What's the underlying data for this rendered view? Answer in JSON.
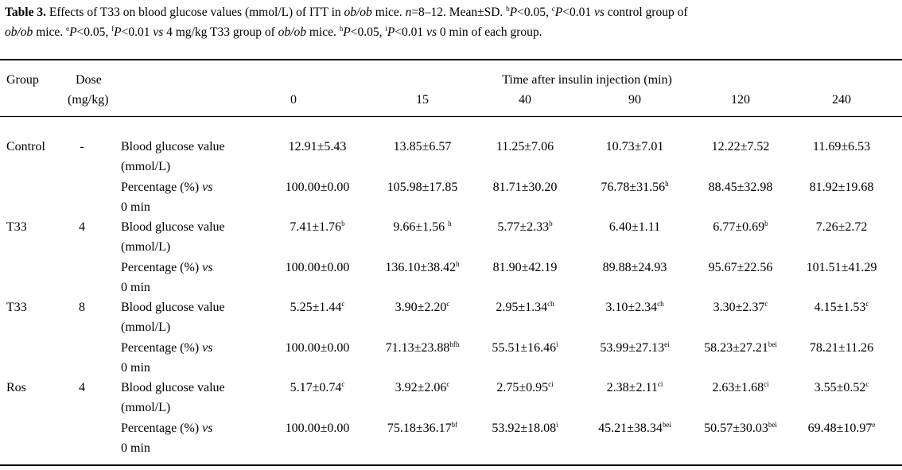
{
  "caption": {
    "label": "Table 3.",
    "text_1": " Effects of T33 on blood glucose values (mmol/L) of ITT in ",
    "mouse": "ob/ob",
    "text_2": " mice. ",
    "n_var": "n",
    "text_3": "=8–12. Mean±SD. ",
    "sup_b": "b",
    "p1": "P",
    "text_4": "<0.05, ",
    "sup_c": "c",
    "p2": "P",
    "text_5": "<0.01 ",
    "vs1": "vs",
    "text_6": " control group of",
    "mouse2": "ob/ob",
    "text_7": " mice. ",
    "sup_e": "e",
    "p3": "P",
    "text_8": "<0.05, ",
    "sup_f": "f",
    "p4": "P",
    "text_9": "<0.01 ",
    "vs2": "vs",
    "text_10": " 4 mg/kg T33 group of ",
    "mouse3": "ob/ob",
    "text_11": " mice. ",
    "sup_h": "h",
    "p5": "P",
    "text_12": "<0.05, ",
    "sup_i": "i",
    "p6": "P",
    "text_13": "<0.01 ",
    "vs3": "vs",
    "text_14": " 0 min of each group."
  },
  "header": {
    "group": "Group",
    "dose_1": "Dose",
    "dose_2": "(mg/kg)",
    "time_span": "Time after insulin injection (min)",
    "times": [
      "0",
      "15",
      "40",
      "90",
      "120",
      "240"
    ]
  },
  "metric_labels": {
    "bg_1": "Blood glucose value",
    "bg_2": "(mmol/L)",
    "pct_1": "Percentage (%) ",
    "pct_vs": "vs",
    "pct_2": "0 min"
  },
  "groups": [
    {
      "name": "Control",
      "dose": "-",
      "bg": [
        [
          "12.91±5.43",
          ""
        ],
        [
          "13.85±6.57",
          ""
        ],
        [
          "11.25±7.06",
          ""
        ],
        [
          "10.73±7.01",
          ""
        ],
        [
          "12.22±7.52",
          ""
        ],
        [
          "11.69±6.53",
          ""
        ]
      ],
      "pct": [
        [
          "100.00±0.00",
          ""
        ],
        [
          "105.98±17.85",
          ""
        ],
        [
          "81.71±30.20",
          ""
        ],
        [
          "76.78±31.56",
          "h"
        ],
        [
          "88.45±32.98",
          ""
        ],
        [
          "81.92±19.68",
          ""
        ]
      ]
    },
    {
      "name": "T33",
      "dose": "4",
      "bg": [
        [
          "7.41±1.76",
          "b"
        ],
        [
          "9.66±1.56 ",
          "h"
        ],
        [
          "5.77±2.33",
          "b"
        ],
        [
          "6.40±1.11",
          ""
        ],
        [
          "6.77±0.69",
          "b"
        ],
        [
          "7.26±2.72",
          ""
        ]
      ],
      "pct": [
        [
          "100.00±0.00",
          ""
        ],
        [
          "136.10±38.42",
          "h"
        ],
        [
          "81.90±42.19",
          ""
        ],
        [
          "89.88±24.93",
          ""
        ],
        [
          "95.67±22.56",
          ""
        ],
        [
          "101.51±41.29",
          ""
        ]
      ]
    },
    {
      "name": "T33",
      "dose": "8",
      "bg": [
        [
          "5.25±1.44",
          "c"
        ],
        [
          "3.90±2.20",
          "c"
        ],
        [
          "2.95±1.34",
          "ch"
        ],
        [
          "3.10±2.34",
          "ch"
        ],
        [
          "3.30±2.37",
          "c"
        ],
        [
          "4.15±1.53",
          "c"
        ]
      ],
      "pct": [
        [
          "100.00±0.00",
          ""
        ],
        [
          "71.13±23.88",
          "bfh"
        ],
        [
          "55.51±16.46",
          "i"
        ],
        [
          "53.99±27.13",
          "ei"
        ],
        [
          "58.23±27.21",
          "bei"
        ],
        [
          "78.21±11.26",
          ""
        ]
      ]
    },
    {
      "name": "Ros",
      "dose": "4",
      "bg": [
        [
          "5.17±0.74",
          "c"
        ],
        [
          "3.92±2.06",
          "c"
        ],
        [
          "2.75±0.95",
          "ci"
        ],
        [
          "2.38±2.11",
          "ci"
        ],
        [
          "2.63±1.68",
          "ci"
        ],
        [
          "3.55±0.52",
          "c"
        ]
      ],
      "pct": [
        [
          "100.00±0.00",
          ""
        ],
        [
          "75.18±36.17",
          "bf"
        ],
        [
          "53.92±18.08",
          "i"
        ],
        [
          "45.21±38.34",
          "bei"
        ],
        [
          "50.57±30.03",
          "bei"
        ],
        [
          "69.48±10.97",
          "e"
        ]
      ]
    }
  ]
}
